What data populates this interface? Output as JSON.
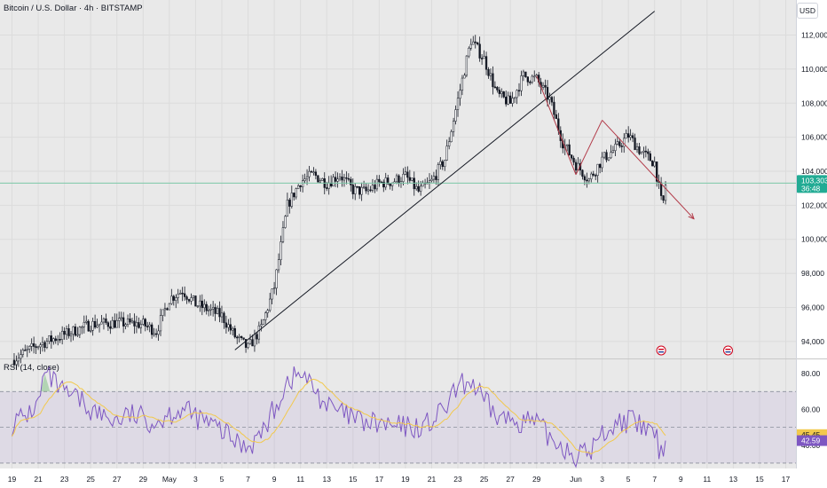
{
  "header": {
    "title": "Bitcoin / U.S. Dollar · 4h · BITSTAMP",
    "currency_button": "USD"
  },
  "rsi_panel": {
    "title": "RSI (14, close)"
  },
  "chart_data": {
    "type": "candlestick",
    "price_axis": {
      "ticks": [
        94000,
        96000,
        98000,
        100000,
        102000,
        104000,
        106000,
        108000,
        110000,
        112000
      ],
      "tick_labels": [
        "94,000",
        "96,000",
        "98,000",
        "100,000",
        "102,000",
        "104,000",
        "106,000",
        "108,000",
        "110,000",
        "112,000"
      ],
      "range": [
        93000,
        113800
      ]
    },
    "current_price": {
      "label": "103,303",
      "countdown": "36:48",
      "value": 103303
    },
    "time_axis": {
      "labels": [
        "19",
        "21",
        "23",
        "25",
        "27",
        "29",
        "May",
        "3",
        "5",
        "7",
        "9",
        "11",
        "13",
        "15",
        "17",
        "19",
        "21",
        "23",
        "25",
        "27",
        "29",
        "Jun",
        "3",
        "5",
        "7",
        "9",
        "11",
        "13",
        "15",
        "17"
      ],
      "label_day_index": [
        0,
        2,
        4,
        6,
        8,
        10,
        12,
        14,
        16,
        18,
        20,
        22,
        24,
        26,
        28,
        30,
        32,
        34,
        36,
        38,
        40,
        43,
        45,
        47,
        49,
        51,
        53,
        55,
        57,
        59
      ],
      "first_day": "2025-04-19"
    },
    "price_keypoints": [
      [
        0,
        92900
      ],
      [
        2,
        93800
      ],
      [
        4,
        94400
      ],
      [
        6,
        95000
      ],
      [
        8,
        95100
      ],
      [
        10,
        95000
      ],
      [
        11,
        94600
      ],
      [
        12,
        96500
      ],
      [
        13,
        97000
      ],
      [
        14,
        96200
      ],
      [
        16,
        95500
      ],
      [
        17,
        94300
      ],
      [
        18,
        93600
      ],
      [
        19,
        94800
      ],
      [
        20,
        97200
      ],
      [
        21,
        102000
      ],
      [
        22,
        103400
      ],
      [
        23,
        103800
      ],
      [
        24,
        103300
      ],
      [
        25,
        103800
      ],
      [
        26,
        102900
      ],
      [
        27,
        102800
      ],
      [
        28,
        103300
      ],
      [
        29,
        103400
      ],
      [
        30,
        103700
      ],
      [
        31,
        102800
      ],
      [
        32,
        103400
      ],
      [
        33,
        104700
      ],
      [
        34,
        108200
      ],
      [
        35,
        111700
      ],
      [
        36,
        110600
      ],
      [
        37,
        108500
      ],
      [
        38,
        108000
      ],
      [
        39,
        109600
      ],
      [
        40,
        109400
      ],
      [
        41,
        108200
      ],
      [
        42,
        105700
      ],
      [
        43,
        104400
      ],
      [
        44,
        103500
      ],
      [
        45,
        104700
      ],
      [
        46,
        105300
      ],
      [
        47,
        106100
      ],
      [
        48,
        105100
      ],
      [
        49,
        104500
      ],
      [
        49.6,
        101800
      ],
      [
        49.85,
        103303
      ]
    ],
    "trendlines": [
      {
        "from": [
          "2025-05-06",
          93500
        ],
        "to": [
          "2025-06-07",
          113400
        ],
        "color": "#131722"
      },
      {
        "from": [
          "2025-05-29",
          109600
        ],
        "to": [
          "2025-06-01",
          103800
        ],
        "color": "#b23a48"
      },
      {
        "from": [
          "2025-06-01",
          103800
        ],
        "to": [
          "2025-06-03",
          107000
        ],
        "color": "#b23a48"
      },
      {
        "from": [
          "2025-06-03",
          107000
        ],
        "to": [
          "2025-06-10",
          101200
        ],
        "color": "#b23a48",
        "arrow": true
      }
    ],
    "rsi": {
      "label": "RSI (14, close)",
      "ticks": [
        40,
        60,
        80
      ],
      "tick_labels": [
        "40.00",
        "60.00",
        "80.00"
      ],
      "range": [
        27,
        88
      ],
      "upper_band": 70,
      "lower_band": 30,
      "current_rsi": {
        "label": "42.59",
        "value": 42.59
      },
      "current_ma": {
        "label": "45.45",
        "value": 45.45
      },
      "keypoints": [
        [
          0,
          52
        ],
        [
          1,
          56
        ],
        [
          2,
          63
        ],
        [
          2.5,
          80
        ],
        [
          3,
          77
        ],
        [
          4,
          68
        ],
        [
          5,
          66
        ],
        [
          6,
          60
        ],
        [
          7,
          56
        ],
        [
          8,
          54
        ],
        [
          9,
          57
        ],
        [
          10,
          55
        ],
        [
          11,
          53
        ],
        [
          12,
          58
        ],
        [
          13,
          60
        ],
        [
          14,
          56
        ],
        [
          15,
          52
        ],
        [
          16,
          48
        ],
        [
          17,
          42
        ],
        [
          18,
          40
        ],
        [
          19,
          46
        ],
        [
          20,
          60
        ],
        [
          21,
          76
        ],
        [
          22,
          80
        ],
        [
          23,
          72
        ],
        [
          24,
          62
        ],
        [
          25,
          58
        ],
        [
          26,
          55
        ],
        [
          27,
          52
        ],
        [
          28,
          52
        ],
        [
          29,
          50
        ],
        [
          30,
          50
        ],
        [
          31,
          50
        ],
        [
          32,
          53
        ],
        [
          33,
          60
        ],
        [
          34,
          72
        ],
        [
          35,
          76
        ],
        [
          36,
          64
        ],
        [
          37,
          56
        ],
        [
          38,
          54
        ],
        [
          39,
          54
        ],
        [
          40,
          52
        ],
        [
          41,
          44
        ],
        [
          42,
          40
        ],
        [
          43,
          34
        ],
        [
          44,
          36
        ],
        [
          45,
          46
        ],
        [
          46,
          52
        ],
        [
          47,
          54
        ],
        [
          48,
          50
        ],
        [
          49,
          46
        ],
        [
          49.6,
          32
        ],
        [
          49.85,
          42.59
        ]
      ],
      "ma_color": "#f2c94c",
      "rsi_color": "#7e57c2"
    }
  }
}
